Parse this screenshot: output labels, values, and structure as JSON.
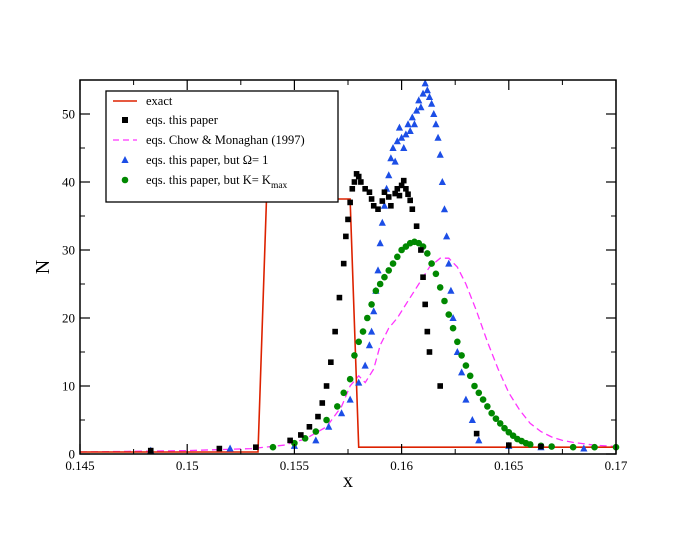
{
  "chart_data": {
    "type": "scatter",
    "xlabel": "x",
    "ylabel": "N",
    "xlim": [
      0.145,
      0.17
    ],
    "ylim": [
      0,
      55
    ],
    "x_ticks": [
      "0.145",
      "0.15",
      "0.155",
      "0.16",
      "0.165",
      "0.17"
    ],
    "y_ticks": [
      "0",
      "10",
      "20",
      "30",
      "40",
      "50"
    ],
    "legend_position": "top-left",
    "colors": {
      "exact": "#dd2200",
      "this_paper": "#000000",
      "chow": "#ff33ff",
      "omega": "#1c4ee6",
      "kmax": "#008800"
    },
    "series": [
      {
        "name": "exact",
        "legend_label": "exact",
        "style": "line",
        "x": [
          0.145,
          0.1533,
          0.1537,
          0.1576,
          0.158,
          0.17
        ],
        "y": [
          0.3,
          0.3,
          37.5,
          37.5,
          1.0,
          1.0
        ]
      },
      {
        "name": "eqs. this paper",
        "legend_label": "eqs. this paper",
        "style": "square",
        "x": [
          0.1483,
          0.1515,
          0.1532,
          0.1548,
          0.1553,
          0.1557,
          0.1561,
          0.1563,
          0.1565,
          0.1567,
          0.1569,
          0.1571,
          0.1573,
          0.1574,
          0.1575,
          0.1576,
          0.1577,
          0.1578,
          0.1579,
          0.158,
          0.1581,
          0.1583,
          0.1585,
          0.1586,
          0.1587,
          0.1589,
          0.1591,
          0.1592,
          0.1594,
          0.1595,
          0.1597,
          0.1598,
          0.1599,
          0.16,
          0.1601,
          0.1602,
          0.1603,
          0.1604,
          0.1605,
          0.1607,
          0.1609,
          0.161,
          0.1611,
          0.1612,
          0.1613,
          0.1618,
          0.1635,
          0.165,
          0.1665
        ],
        "y": [
          0.5,
          0.8,
          1.0,
          2.0,
          2.8,
          4.0,
          5.5,
          7.5,
          10.0,
          13.5,
          18.0,
          23.0,
          28.0,
          32.0,
          34.5,
          37.0,
          39.0,
          40.0,
          41.2,
          40.8,
          40.0,
          39.0,
          38.5,
          37.5,
          36.5,
          36.0,
          37.2,
          38.5,
          37.8,
          36.5,
          38.3,
          39.0,
          38.0,
          39.5,
          40.2,
          39.0,
          38.2,
          37.3,
          36.0,
          33.5,
          30.0,
          26.0,
          22.0,
          18.0,
          15.0,
          10.0,
          3.0,
          1.3,
          1.1
        ]
      },
      {
        "name": "eqs. Chow & Monaghan (1997)",
        "legend_label": "eqs. Chow & Monaghan (1997)",
        "style": "dashed",
        "x": [
          0.145,
          0.15,
          0.153,
          0.1545,
          0.1555,
          0.1565,
          0.1572,
          0.1576,
          0.158,
          0.1583,
          0.1587,
          0.159,
          0.1594,
          0.1598,
          0.1603,
          0.1608,
          0.1613,
          0.1618,
          0.1622,
          0.1626,
          0.163,
          0.1635,
          0.164,
          0.1645,
          0.165,
          0.1655,
          0.166,
          0.1665,
          0.167,
          0.1675,
          0.168,
          0.169,
          0.17
        ],
        "y": [
          0.3,
          0.5,
          0.8,
          1.3,
          2.2,
          4.0,
          7.0,
          10.0,
          11.5,
          10.5,
          12.5,
          16.0,
          18.5,
          20.0,
          22.5,
          25.0,
          27.5,
          28.8,
          28.8,
          27.5,
          25.0,
          21.0,
          16.5,
          12.5,
          9.0,
          6.5,
          4.5,
          3.3,
          2.5,
          2.0,
          1.7,
          1.3,
          1.1
        ]
      },
      {
        "name": "eqs. this paper, but Omega=1",
        "legend_label": "eqs. this paper, but Ω= 1",
        "style": "triangle",
        "x": [
          0.1483,
          0.152,
          0.155,
          0.156,
          0.1566,
          0.1572,
          0.1576,
          0.158,
          0.1583,
          0.1585,
          0.1586,
          0.1587,
          0.1588,
          0.1589,
          0.159,
          0.1591,
          0.1592,
          0.1593,
          0.1594,
          0.1595,
          0.1596,
          0.1597,
          0.1598,
          0.1599,
          0.16,
          0.1601,
          0.1602,
          0.1603,
          0.1604,
          0.1605,
          0.1606,
          0.1607,
          0.1608,
          0.1609,
          0.161,
          0.1611,
          0.1612,
          0.1613,
          0.1614,
          0.1615,
          0.1616,
          0.1617,
          0.1618,
          0.1619,
          0.162,
          0.1621,
          0.1622,
          0.1623,
          0.1624,
          0.1626,
          0.1628,
          0.163,
          0.1633,
          0.1636,
          0.165,
          0.1665,
          0.1685
        ],
        "y": [
          0.5,
          0.8,
          1.2,
          2.0,
          4.0,
          6.0,
          8.0,
          10.5,
          13.0,
          16.0,
          18.0,
          21.0,
          24.0,
          27.0,
          31.0,
          34.0,
          36.5,
          39.0,
          41.0,
          43.5,
          45.0,
          43.0,
          46.0,
          48.0,
          46.5,
          45.0,
          47.0,
          48.5,
          47.5,
          49.5,
          48.5,
          50.5,
          52.0,
          51.0,
          53.0,
          54.5,
          53.5,
          52.5,
          51.5,
          50.0,
          48.5,
          46.5,
          44.0,
          40.0,
          36.0,
          32.0,
          28.0,
          24.0,
          20.0,
          15.0,
          12.0,
          8.0,
          5.0,
          2.0,
          1.2,
          1.0,
          0.8
        ]
      },
      {
        "name": "eqs. this paper, but K=K_max",
        "legend_label_main": "eqs. this paper, but K= K",
        "legend_label_sub": "max",
        "style": "circle",
        "x": [
          0.154,
          0.155,
          0.1555,
          0.156,
          0.1565,
          0.157,
          0.1573,
          0.1576,
          0.1578,
          0.158,
          0.1582,
          0.1584,
          0.1586,
          0.1588,
          0.159,
          0.1592,
          0.1594,
          0.1596,
          0.1598,
          0.16,
          0.1602,
          0.1604,
          0.1606,
          0.1608,
          0.161,
          0.1612,
          0.1614,
          0.1616,
          0.1618,
          0.162,
          0.1622,
          0.1624,
          0.1626,
          0.1628,
          0.163,
          0.1632,
          0.1634,
          0.1636,
          0.1638,
          0.164,
          0.1642,
          0.1644,
          0.1646,
          0.1648,
          0.165,
          0.1652,
          0.1654,
          0.1656,
          0.1658,
          0.166,
          0.1665,
          0.167,
          0.168,
          0.169,
          0.17
        ],
        "y": [
          1.0,
          1.6,
          2.3,
          3.3,
          5.0,
          7.0,
          9.0,
          11.0,
          14.5,
          16.5,
          18.0,
          20.0,
          22.0,
          24.0,
          25.0,
          26.0,
          27.0,
          28.0,
          29.0,
          30.0,
          30.5,
          31.0,
          31.2,
          31.0,
          30.5,
          29.5,
          28.0,
          26.5,
          24.5,
          22.5,
          20.5,
          18.5,
          16.5,
          14.5,
          13.0,
          11.5,
          10.0,
          9.0,
          8.0,
          7.0,
          6.0,
          5.2,
          4.5,
          3.8,
          3.2,
          2.7,
          2.2,
          1.9,
          1.6,
          1.4,
          1.2,
          1.1,
          1.0,
          1.0,
          1.0
        ]
      }
    ]
  }
}
